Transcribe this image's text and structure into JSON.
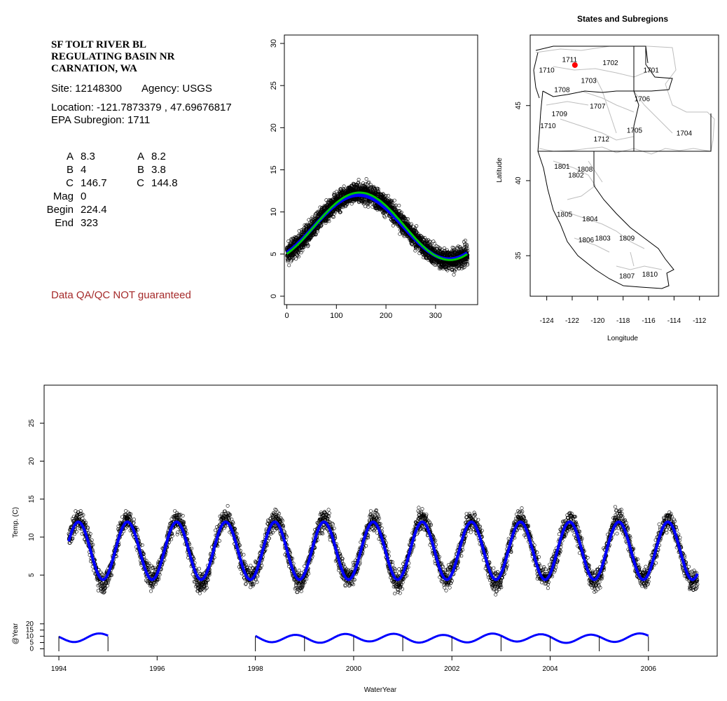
{
  "site": {
    "name_lines": [
      "SF TOLT RIVER BL",
      "REGULATING BASIN NR",
      "CARNATION, WA"
    ],
    "site_label": "Site: 12148300",
    "agency_label": "Agency: USGS",
    "location_label": "Location: -121.7873379 , 47.69676817",
    "subregion_label": "EPA Subregion: 1711"
  },
  "coefficients": {
    "left": [
      {
        "label": "A",
        "value": "8.3"
      },
      {
        "label": "B",
        "value": "4"
      },
      {
        "label": "C",
        "value": "146.7"
      },
      {
        "label": "Mag",
        "value": "0"
      },
      {
        "label": "Begin",
        "value": "224.4"
      },
      {
        "label": "End",
        "value": "323"
      }
    ],
    "right": [
      {
        "label": "A",
        "value": "8.2"
      },
      {
        "label": "B",
        "value": "3.8"
      },
      {
        "label": "C",
        "value": "144.8"
      }
    ]
  },
  "disclaimer": "Data QA/QC NOT guaranteed",
  "colors": {
    "points": "#000000",
    "fit_blue": "#0000FF",
    "fit_green": "#00C800",
    "site_dot": "#FF0000",
    "disclaimer": "#A52A2A",
    "boundaries": "#BEBEBE"
  },
  "chart_data": [
    {
      "type": "scatter",
      "title": "",
      "xlabel": "",
      "ylabel": "",
      "xlim": [
        -5,
        385
      ],
      "ylim": [
        -1,
        31
      ],
      "xticks": [
        "0",
        "100",
        "200",
        "300"
      ],
      "yticks": [
        "0",
        "5",
        "10",
        "15",
        "20",
        "25",
        "30"
      ],
      "series": [
        {
          "kind": "points",
          "model": "A + B*cos(2*pi*(day - C)/365)",
          "A": 8.3,
          "B": 4,
          "C": 146.7,
          "x_range": [
            0,
            365
          ]
        },
        {
          "kind": "fit-line",
          "color": "green",
          "A": 8.3,
          "B": 4,
          "C": 146.7
        },
        {
          "kind": "fit-line",
          "color": "blue",
          "A": 8.2,
          "B": 3.8,
          "C": 144.8
        }
      ]
    },
    {
      "type": "map",
      "title": "States and Subregions",
      "xlabel": "Longitude",
      "ylabel": "Latitude",
      "xlim": [
        -125.3,
        -110.5
      ],
      "ylim": [
        32.3,
        49.7
      ],
      "xticks": [
        "-124",
        "-122",
        "-120",
        "-118",
        "-116",
        "-114",
        "-112"
      ],
      "yticks": [
        "35",
        "40",
        "45"
      ],
      "site": {
        "lon": -121.7873379,
        "lat": 47.69676817
      },
      "subregion_labels": [
        {
          "text": "1711",
          "lon": -122.2,
          "lat": 47.9
        },
        {
          "text": "1702",
          "lon": -119.0,
          "lat": 47.7
        },
        {
          "text": "1701",
          "lon": -115.8,
          "lat": 47.2
        },
        {
          "text": "1710",
          "lon": -124.0,
          "lat": 47.2
        },
        {
          "text": "1703",
          "lon": -120.7,
          "lat": 46.5
        },
        {
          "text": "1708",
          "lon": -122.8,
          "lat": 45.9
        },
        {
          "text": "1706",
          "lon": -116.5,
          "lat": 45.3
        },
        {
          "text": "1707",
          "lon": -120.0,
          "lat": 44.8
        },
        {
          "text": "1709",
          "lon": -123.0,
          "lat": 44.3
        },
        {
          "text": "1710",
          "lon": -123.9,
          "lat": 43.5
        },
        {
          "text": "1705",
          "lon": -117.1,
          "lat": 43.2
        },
        {
          "text": "1704",
          "lon": -113.2,
          "lat": 43.0
        },
        {
          "text": "1712",
          "lon": -119.7,
          "lat": 42.6
        },
        {
          "text": "1801",
          "lon": -122.8,
          "lat": 40.8
        },
        {
          "text": "1808",
          "lon": -121.0,
          "lat": 40.6
        },
        {
          "text": "1802",
          "lon": -121.7,
          "lat": 40.2
        },
        {
          "text": "1805",
          "lon": -122.6,
          "lat": 37.6
        },
        {
          "text": "1804",
          "lon": -120.6,
          "lat": 37.3
        },
        {
          "text": "1809",
          "lon": -117.7,
          "lat": 36.0
        },
        {
          "text": "1806",
          "lon": -120.9,
          "lat": 35.9
        },
        {
          "text": "1803",
          "lon": -119.6,
          "lat": 36.0
        },
        {
          "text": "1810",
          "lon": -115.9,
          "lat": 33.6
        },
        {
          "text": "1807",
          "lon": -117.7,
          "lat": 33.5
        }
      ]
    },
    {
      "type": "scatter",
      "title": "",
      "xlabel": "WaterYear",
      "ylabel": "Temp. (C)",
      "xlim": [
        1993.7,
        2007.4
      ],
      "ylim": [
        0.5,
        30
      ],
      "xticks": [
        "1994",
        "1996",
        "1998",
        "2000",
        "2002",
        "2004",
        "2006"
      ],
      "yticks": [
        "5",
        "10",
        "15",
        "20",
        "25"
      ],
      "x_range": [
        1994.2,
        2007.0
      ],
      "series": [
        {
          "kind": "points",
          "A": 8.3,
          "B": 4,
          "C": 146.7
        },
        {
          "kind": "fit-line",
          "color": "blue",
          "A": 8.2,
          "B": 3.8,
          "C": 144.8
        }
      ]
    },
    {
      "type": "line",
      "title": "",
      "xlabel": "",
      "ylabel": "@Year",
      "ylim": [
        -2,
        30
      ],
      "yticks": [
        "0",
        "5",
        "10",
        "15",
        "20"
      ],
      "segments": [
        [
          1994.0,
          1995.0
        ],
        [
          1998.0,
          2006.0
        ]
      ],
      "year_markers": [
        "1994",
        "1995",
        "1998",
        "1999",
        "2000",
        "2001",
        "2002",
        "2003",
        "2004",
        "2005",
        "2006"
      ]
    }
  ]
}
